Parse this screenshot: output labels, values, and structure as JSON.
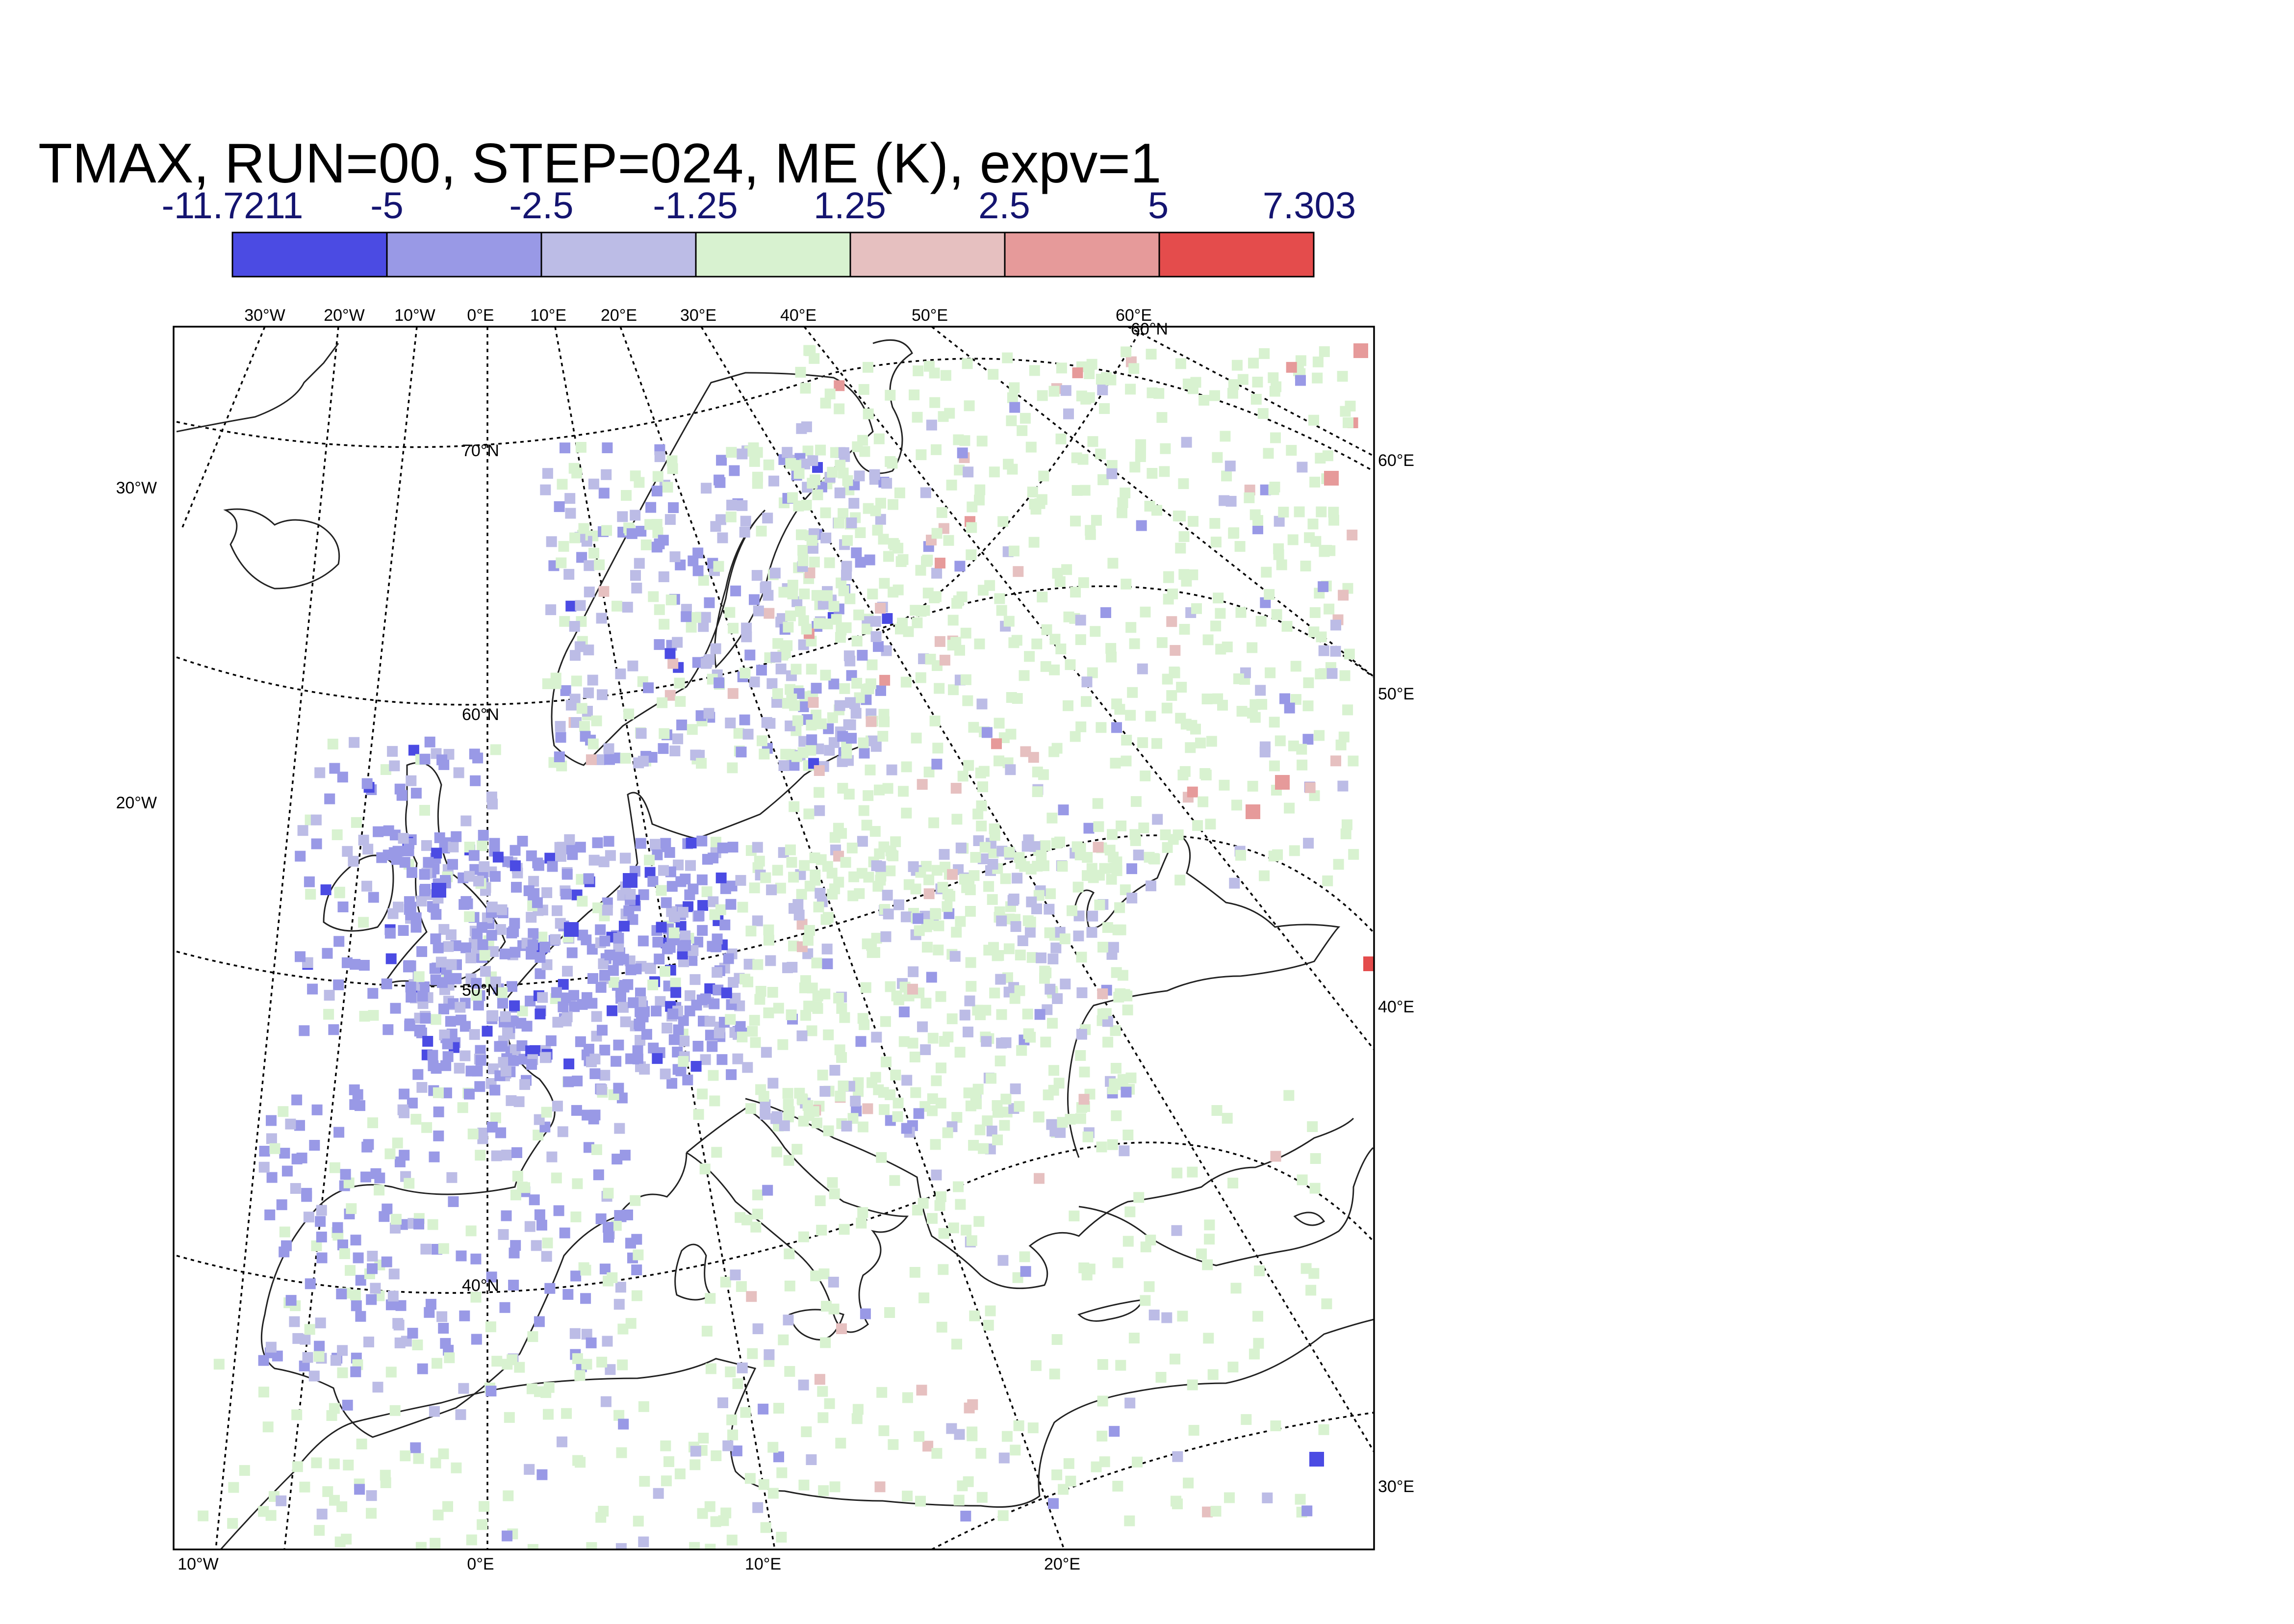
{
  "title": "TMAX, RUN=00, STEP=024, ME (K), expv=1",
  "legend": {
    "labels": [
      "-11.7211",
      "-5",
      "-2.5",
      "-1.25",
      "1.25",
      "2.5",
      "5",
      "7.303"
    ],
    "colors": [
      "#4b4be3",
      "#9999e6",
      "#bcbce6",
      "#d8f2d0",
      "#e6c0c0",
      "#e69a9a",
      "#e44c4c"
    ]
  },
  "map": {
    "top_labels": [
      "30°W",
      "20°W",
      "10°W",
      "0°E",
      "10°E",
      "20°E",
      "30°E",
      "40°E",
      "50°E",
      "60°E",
      "60°N"
    ],
    "bottom_labels": [
      "10°W",
      "0°E",
      "10°E",
      "20°E"
    ],
    "left_labels": [
      "30°W",
      "20°W"
    ],
    "right_labels": [
      "60°E",
      "50°E",
      "40°E",
      "30°E"
    ],
    "inner_labels": [
      "70°N",
      "60°N",
      "50°N",
      "40°N"
    ]
  }
}
